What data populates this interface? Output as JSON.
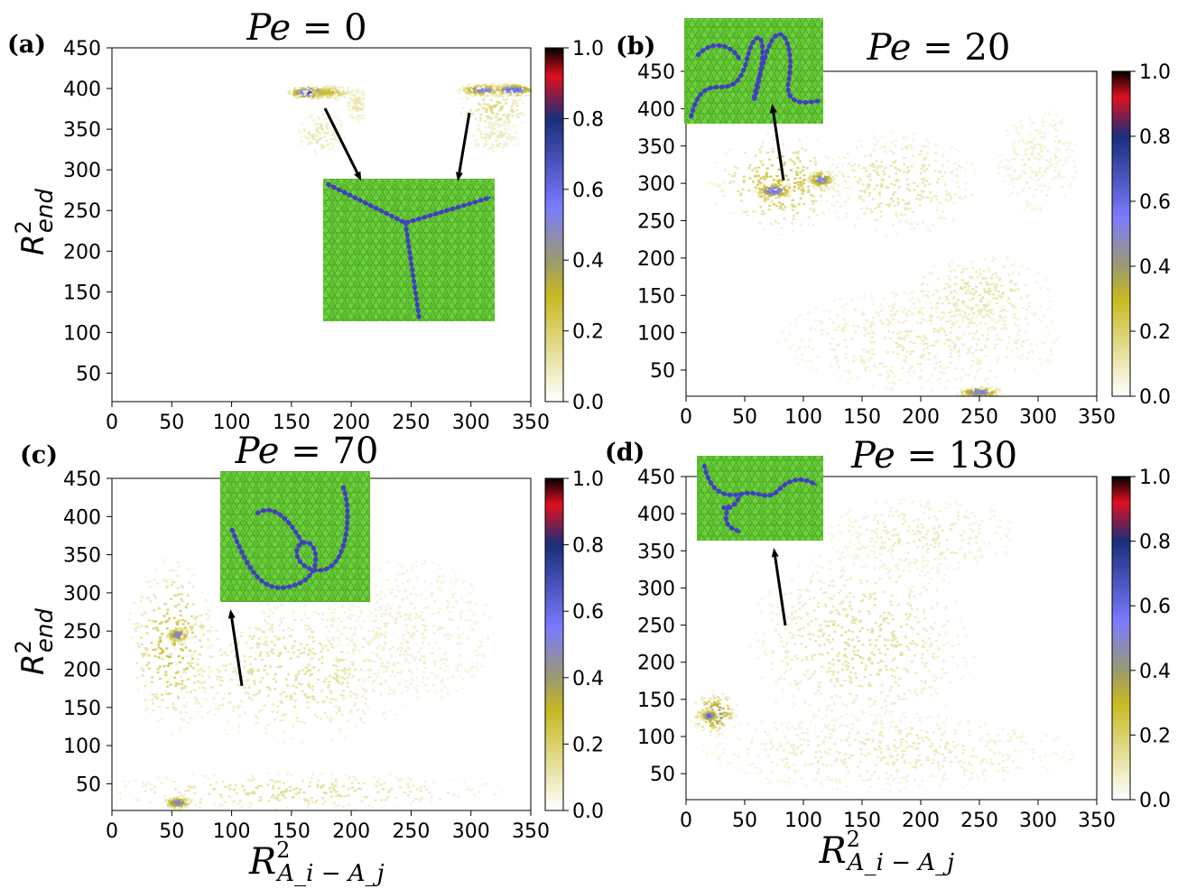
{
  "colors": {
    "colormap": [
      "#ffffff",
      "#c7b820",
      "#9a9a70",
      "#7b7bff",
      "#1a2e7a",
      "#e0101f",
      "#000000"
    ],
    "colormap_stops": [
      0.0,
      0.3,
      0.4,
      0.55,
      0.8,
      0.92,
      1.0
    ],
    "bead_green": "#6fd43a",
    "chain_blue": "#4040c0"
  },
  "chart_data": [
    {
      "type": "heatmap",
      "panel": "(a)",
      "title_lhs": "Pe",
      "title_rhs": "= 0",
      "ylabel_base": "R",
      "ylabel_sup": "2",
      "ylabel_sub": "end",
      "xlabel": "",
      "xlim": [
        0,
        350
      ],
      "ylim": [
        15,
        450
      ],
      "xticks": [
        0,
        50,
        100,
        150,
        200,
        250,
        300,
        350
      ],
      "yticks": [
        50,
        100,
        150,
        200,
        250,
        300,
        350,
        400,
        450
      ],
      "colorbar_ticks": [
        0.0,
        0.2,
        0.4,
        0.6,
        0.8,
        1.0
      ],
      "colorbar_labels": [
        "0.0",
        "0.2",
        "0.4",
        "0.6",
        "0.8",
        "1.0"
      ],
      "clusters": [
        {
          "x": 165,
          "y": 395,
          "sx": 9,
          "sy": 4,
          "v": 0.75
        },
        {
          "x": 180,
          "y": 395,
          "sx": 12,
          "sy": 5,
          "v": 0.3
        },
        {
          "x": 175,
          "y": 345,
          "sx": 14,
          "sy": 18,
          "v": 0.12
        },
        {
          "x": 205,
          "y": 380,
          "sx": 6,
          "sy": 15,
          "v": 0.12
        },
        {
          "x": 310,
          "y": 398,
          "sx": 10,
          "sy": 4,
          "v": 0.55
        },
        {
          "x": 335,
          "y": 398,
          "sx": 10,
          "sy": 4,
          "v": 0.65
        },
        {
          "x": 320,
          "y": 375,
          "sx": 18,
          "sy": 16,
          "v": 0.18
        },
        {
          "x": 320,
          "y": 340,
          "sx": 16,
          "sy": 14,
          "v": 0.1
        }
      ],
      "inset_desc": "star"
    },
    {
      "type": "heatmap",
      "panel": "(b)",
      "title_lhs": "Pe",
      "title_rhs": "= 20",
      "ylabel_base": "",
      "ylabel_sup": "",
      "ylabel_sub": "",
      "xlabel": "",
      "xlim": [
        0,
        350
      ],
      "ylim": [
        15,
        450
      ],
      "xticks": [
        0,
        50,
        100,
        150,
        200,
        250,
        300,
        350
      ],
      "yticks": [
        50,
        100,
        150,
        200,
        250,
        300,
        350,
        400,
        450
      ],
      "colorbar_ticks": [
        0.0,
        0.2,
        0.4,
        0.6,
        0.8,
        1.0
      ],
      "colorbar_labels": [
        "0.0",
        "0.2",
        "0.4",
        "0.6",
        "0.8",
        "1.0"
      ],
      "clusters": [
        {
          "x": 80,
          "y": 300,
          "sx": 30,
          "sy": 35,
          "v": 0.3
        },
        {
          "x": 75,
          "y": 290,
          "sx": 8,
          "sy": 6,
          "v": 0.6
        },
        {
          "x": 115,
          "y": 305,
          "sx": 6,
          "sy": 6,
          "v": 0.55
        },
        {
          "x": 180,
          "y": 300,
          "sx": 45,
          "sy": 45,
          "v": 0.14
        },
        {
          "x": 250,
          "y": 150,
          "sx": 40,
          "sy": 35,
          "v": 0.14
        },
        {
          "x": 200,
          "y": 90,
          "sx": 90,
          "sy": 50,
          "v": 0.1
        },
        {
          "x": 250,
          "y": 20,
          "sx": 10,
          "sy": 4,
          "v": 0.55
        },
        {
          "x": 300,
          "y": 330,
          "sx": 30,
          "sy": 60,
          "v": 0.08
        }
      ],
      "inset_desc": "chain"
    },
    {
      "type": "heatmap",
      "panel": "(c)",
      "title_lhs": "Pe",
      "title_rhs": "= 70",
      "ylabel_base": "R",
      "ylabel_sup": "2",
      "ylabel_sub": "end",
      "xlabel_base": "R",
      "xlabel_sup": "2",
      "xlabel_sub": "A_i − A_j",
      "xlim": [
        0,
        350
      ],
      "ylim": [
        15,
        450
      ],
      "xticks": [
        0,
        50,
        100,
        150,
        200,
        250,
        300,
        350
      ],
      "yticks": [
        50,
        100,
        150,
        200,
        250,
        300,
        350,
        400,
        450
      ],
      "colorbar_ticks": [
        0.0,
        0.2,
        0.4,
        0.6,
        0.8,
        1.0
      ],
      "colorbar_labels": [
        "0.0",
        "0.2",
        "0.4",
        "0.6",
        "0.8",
        "1.0"
      ],
      "clusters": [
        {
          "x": 50,
          "y": 230,
          "sx": 20,
          "sy": 60,
          "v": 0.3
        },
        {
          "x": 55,
          "y": 245,
          "sx": 5,
          "sy": 5,
          "v": 0.55
        },
        {
          "x": 150,
          "y": 200,
          "sx": 70,
          "sy": 60,
          "v": 0.15
        },
        {
          "x": 150,
          "y": 40,
          "sx": 110,
          "sy": 15,
          "v": 0.16
        },
        {
          "x": 55,
          "y": 25,
          "sx": 6,
          "sy": 4,
          "v": 0.55
        },
        {
          "x": 250,
          "y": 250,
          "sx": 60,
          "sy": 80,
          "v": 0.08
        }
      ],
      "inset_desc": "loop"
    },
    {
      "type": "heatmap",
      "panel": "(d)",
      "title_lhs": "Pe",
      "title_rhs": "= 130",
      "ylabel_base": "",
      "ylabel_sup": "",
      "ylabel_sub": "",
      "xlabel_base": "R",
      "xlabel_sup": "2",
      "xlabel_sub": "A_i − A_j",
      "xlim": [
        0,
        350
      ],
      "ylim": [
        15,
        450
      ],
      "xticks": [
        0,
        50,
        100,
        150,
        200,
        250,
        300,
        350
      ],
      "yticks": [
        50,
        100,
        150,
        200,
        250,
        300,
        350,
        400,
        450
      ],
      "colorbar_ticks": [
        0.0,
        0.2,
        0.4,
        0.6,
        0.8,
        1.0
      ],
      "colorbar_labels": [
        "0.0",
        "0.2",
        "0.4",
        "0.6",
        "0.8",
        "1.0"
      ],
      "clusters": [
        {
          "x": 25,
          "y": 130,
          "sx": 10,
          "sy": 15,
          "v": 0.45
        },
        {
          "x": 20,
          "y": 128,
          "sx": 4,
          "sy": 4,
          "v": 0.65
        },
        {
          "x": 150,
          "y": 230,
          "sx": 60,
          "sy": 80,
          "v": 0.15
        },
        {
          "x": 170,
          "y": 80,
          "sx": 120,
          "sy": 40,
          "v": 0.1
        },
        {
          "x": 200,
          "y": 370,
          "sx": 60,
          "sy": 40,
          "v": 0.1
        }
      ],
      "inset_desc": "chain2"
    }
  ]
}
